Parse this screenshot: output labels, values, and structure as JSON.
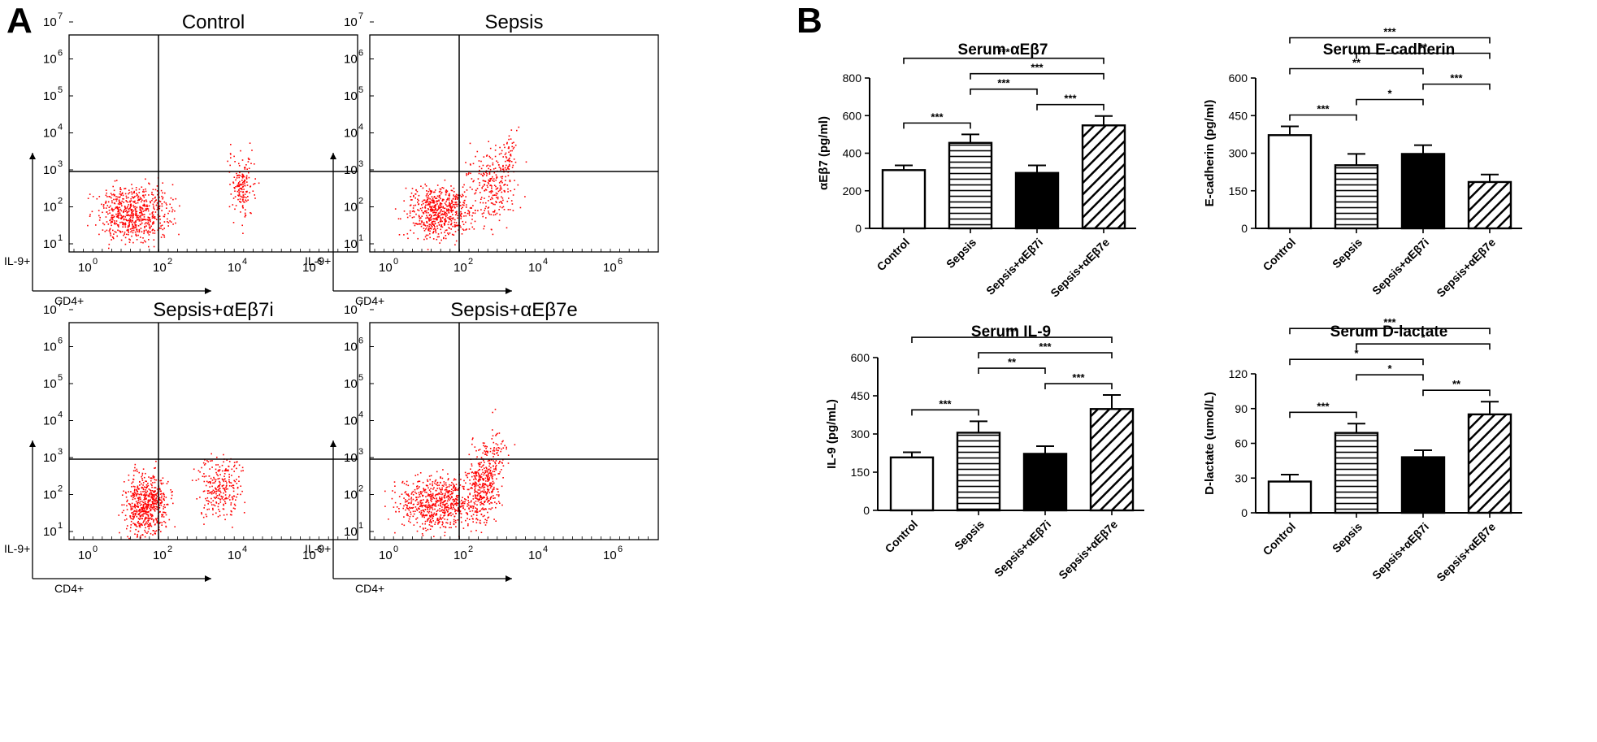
{
  "panel_labels": {
    "a": "A",
    "b": "B"
  },
  "flow": {
    "x_axis_label": "CD4+",
    "y_axis_label": "IL-9+",
    "x_ticks": [
      {
        "base": "10",
        "exp": "0"
      },
      {
        "base": "10",
        "exp": "2"
      },
      {
        "base": "10",
        "exp": "4"
      },
      {
        "base": "10",
        "exp": "6"
      }
    ],
    "y_ticks": [
      {
        "base": "10",
        "exp": "1"
      },
      {
        "base": "10",
        "exp": "2"
      },
      {
        "base": "10",
        "exp": "3"
      },
      {
        "base": "10",
        "exp": "4"
      },
      {
        "base": "10",
        "exp": "5"
      },
      {
        "base": "10",
        "exp": "6"
      },
      {
        "base": "10",
        "exp": "7"
      }
    ],
    "dot_color": "#ff0000",
    "panels": [
      {
        "title": "Control"
      },
      {
        "title": "Sepsis"
      },
      {
        "title": "Sepsis+αEβ7i"
      },
      {
        "title": "Sepsis+αEβ7e"
      }
    ]
  },
  "chart_data": [
    {
      "type": "bar",
      "title": "Serum αEβ7",
      "ylabel": "αEβ7 (pg/ml)",
      "xlabel": "",
      "categories": [
        "Control",
        "Sepsis",
        "Sepsis+αEβ7i",
        "Sepsis+αEβ7e"
      ],
      "values": [
        310,
        455,
        295,
        548
      ],
      "errors": [
        25,
        45,
        40,
        50
      ],
      "ylim": [
        0,
        800
      ],
      "yticks": [
        0,
        200,
        400,
        600,
        800
      ],
      "bar_patterns": [
        "open",
        "horizontal",
        "solid",
        "diagonal"
      ],
      "significance": [
        {
          "from": 0,
          "to": 3,
          "label": "***"
        },
        {
          "from": 1,
          "to": 3,
          "label": "***"
        },
        {
          "from": 2,
          "to": 3,
          "label": "***"
        },
        {
          "from": 0,
          "to": 1,
          "label": "***"
        },
        {
          "from": 1,
          "to": 2,
          "label": "***"
        }
      ]
    },
    {
      "type": "bar",
      "title": "Serum E-cadherin",
      "ylabel": "E-cadherin (pg/ml)",
      "xlabel": "",
      "categories": [
        "Control",
        "Sepsis",
        "Sepsis+αEβ7i",
        "Sepsis+αEβ7e"
      ],
      "values": [
        372,
        252,
        297,
        185
      ],
      "errors": [
        35,
        45,
        35,
        30
      ],
      "ylim": [
        0,
        600
      ],
      "yticks": [
        0,
        150,
        300,
        450,
        600
      ],
      "bar_patterns": [
        "open",
        "horizontal",
        "solid",
        "diagonal"
      ],
      "significance": [
        {
          "from": 0,
          "to": 3,
          "label": "***"
        },
        {
          "from": 0,
          "to": 2,
          "label": "**"
        },
        {
          "from": 1,
          "to": 3,
          "label": "**"
        },
        {
          "from": 0,
          "to": 1,
          "label": "***"
        },
        {
          "from": 1,
          "to": 2,
          "label": "*"
        },
        {
          "from": 2,
          "to": 3,
          "label": "***"
        }
      ]
    },
    {
      "type": "bar",
      "title": "Serum IL-9",
      "ylabel": "IL-9 (pg/mL)",
      "xlabel": "",
      "categories": [
        "Control",
        "Sepsis",
        "Sepsis+αEβ7i",
        "Sepsis+αEβ7e"
      ],
      "values": [
        208,
        305,
        222,
        398
      ],
      "errors": [
        20,
        45,
        30,
        55
      ],
      "ylim": [
        0,
        600
      ],
      "yticks": [
        0,
        150,
        300,
        450,
        600
      ],
      "bar_patterns": [
        "open",
        "horizontal",
        "solid",
        "diagonal"
      ],
      "significance": [
        {
          "from": 0,
          "to": 3,
          "label": "***"
        },
        {
          "from": 1,
          "to": 3,
          "label": "***"
        },
        {
          "from": 2,
          "to": 3,
          "label": "***"
        },
        {
          "from": 0,
          "to": 1,
          "label": "***"
        },
        {
          "from": 1,
          "to": 2,
          "label": "**"
        }
      ]
    },
    {
      "type": "bar",
      "title": "Serum D-lactate",
      "ylabel": "D-lactate (umol/L)",
      "xlabel": "",
      "categories": [
        "Control",
        "Sepsis",
        "Sepsis+αEβ7i",
        "Sepsis+αEβ7e"
      ],
      "values": [
        27,
        69,
        48,
        85
      ],
      "errors": [
        6,
        8,
        6,
        11
      ],
      "ylim": [
        0,
        120
      ],
      "yticks": [
        0,
        30,
        60,
        90,
        120
      ],
      "bar_patterns": [
        "open",
        "horizontal",
        "solid",
        "diagonal"
      ],
      "significance": [
        {
          "from": 0,
          "to": 3,
          "label": "***"
        },
        {
          "from": 0,
          "to": 2,
          "label": "*"
        },
        {
          "from": 2,
          "to": 3,
          "label": "**"
        },
        {
          "from": 1,
          "to": 3,
          "label": "*"
        },
        {
          "from": 0,
          "to": 1,
          "label": "***"
        },
        {
          "from": 1,
          "to": 2,
          "label": "*"
        }
      ]
    }
  ]
}
